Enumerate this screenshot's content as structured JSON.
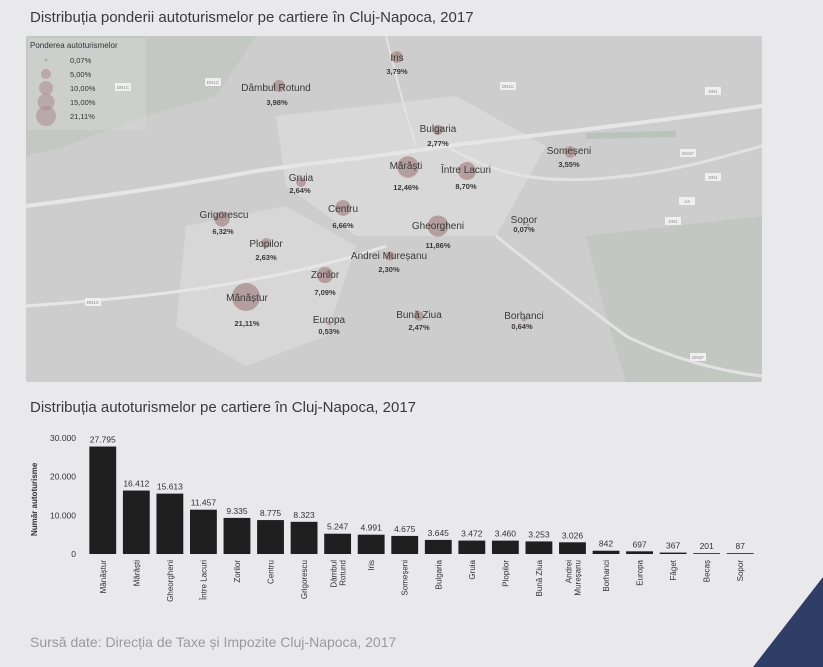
{
  "map": {
    "title": "Distribuția ponderii autoturismelor pe cartiere în Cluj-Napoca, 2017",
    "legend_title": "Ponderea autoturismelor",
    "legend_items": [
      "0,07%",
      "5,00%",
      "10,00%",
      "15,00%",
      "21,11%"
    ],
    "bubble_color": "#a98b8b",
    "points": [
      {
        "name": "Iris",
        "label": "3,79%"
      },
      {
        "name": "Dâmbul Rotund",
        "label": "3,98%"
      },
      {
        "name": "Bulgaria",
        "label": "2,77%"
      },
      {
        "name": "Someșeni",
        "label": "3,55%"
      },
      {
        "name": "Mărăști",
        "label": "12,46%"
      },
      {
        "name": "Între Lacuri",
        "label": "8,70%"
      },
      {
        "name": "Gruia",
        "label": "2,64%"
      },
      {
        "name": "Centru",
        "label": "6,66%"
      },
      {
        "name": "Grigorescu",
        "label": "6,32%"
      },
      {
        "name": "Gheorgheni",
        "label": "11,86%"
      },
      {
        "name": "Sopor",
        "label": "0,07%"
      },
      {
        "name": "Plopilor",
        "label": "2,63%"
      },
      {
        "name": "Andrei Mureșanu",
        "label": "2,30%"
      },
      {
        "name": "Zorilor",
        "label": "7,09%"
      },
      {
        "name": "Mănăștur",
        "label": "21,11%"
      },
      {
        "name": "Europa",
        "label": "0,53%"
      },
      {
        "name": "Bună Ziua",
        "label": "2,47%"
      },
      {
        "name": "Borhanci",
        "label": "0,64%"
      }
    ],
    "road_labels": [
      "DN1C",
      "DN1C",
      "DN1C",
      "DN1",
      "DN1F",
      "DN1",
      "A3",
      "DN1",
      "DN1C",
      "DN1F"
    ]
  },
  "chart_data": {
    "type": "bar",
    "title": "Distribuția autoturismelor pe cartiere în Cluj-Napoca, 2017",
    "ylabel": "Număr autoturisme",
    "xlabel": "",
    "ylim": [
      0,
      30000
    ],
    "yticks": [
      0,
      10000,
      20000,
      30000
    ],
    "ytick_labels": [
      "0",
      "10.000",
      "20.000",
      "30.000"
    ],
    "grid": false,
    "bar_color": "#1f1f1f",
    "categories": [
      "Mănăștur",
      "Mărăști",
      "Gheorgheni",
      "Între Lacuri",
      "Zorilor",
      "Centru",
      "Grigorescu",
      "Dâmbul Rotund",
      "Iris",
      "Someșeni",
      "Bulgaria",
      "Gruia",
      "Plopilor",
      "Bună Ziua",
      "Andrei Mureșanu",
      "Borhanci",
      "Europa",
      "Făget",
      "Becaș",
      "Sopor"
    ],
    "values": [
      27795,
      16412,
      15613,
      11457,
      9335,
      8775,
      8323,
      5247,
      4991,
      4675,
      3645,
      3472,
      3460,
      3253,
      3026,
      842,
      697,
      367,
      201,
      87
    ],
    "value_labels": [
      "27.795",
      "16.412",
      "15.613",
      "11.457",
      "9.335",
      "8.775",
      "8.323",
      "5.247",
      "4.991",
      "4.675",
      "3.645",
      "3.472",
      "3.460",
      "3.253",
      "3.026",
      "842",
      "697",
      "367",
      "201",
      "87"
    ]
  },
  "source": "Sursă date: Direcția de Taxe și Impozite Cluj-Napoca, 2017"
}
